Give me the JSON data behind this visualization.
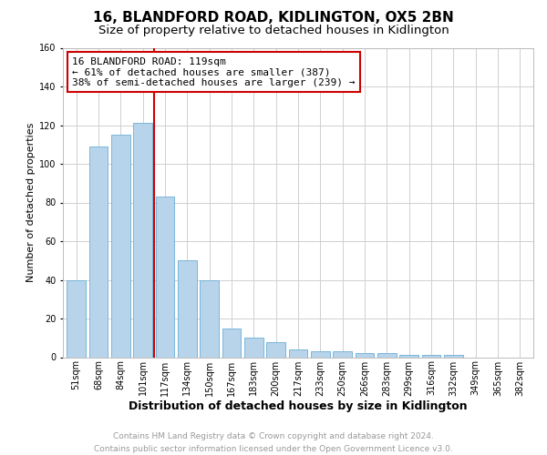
{
  "title": "16, BLANDFORD ROAD, KIDLINGTON, OX5 2BN",
  "subtitle": "Size of property relative to detached houses in Kidlington",
  "xlabel": "Distribution of detached houses by size in Kidlington",
  "ylabel": "Number of detached properties",
  "categories": [
    "51sqm",
    "68sqm",
    "84sqm",
    "101sqm",
    "117sqm",
    "134sqm",
    "150sqm",
    "167sqm",
    "183sqm",
    "200sqm",
    "217sqm",
    "233sqm",
    "250sqm",
    "266sqm",
    "283sqm",
    "299sqm",
    "316sqm",
    "332sqm",
    "349sqm",
    "365sqm",
    "382sqm"
  ],
  "values": [
    40,
    109,
    115,
    121,
    83,
    50,
    40,
    15,
    10,
    8,
    4,
    3,
    3,
    2,
    2,
    1,
    1,
    1,
    0,
    0,
    0
  ],
  "bar_color": "#b8d4ea",
  "bar_edge_color": "#6aaed6",
  "highlight_line_color": "#cc0000",
  "annotation_line1": "16 BLANDFORD ROAD: 119sqm",
  "annotation_line2": "← 61% of detached houses are smaller (387)",
  "annotation_line3": "38% of semi-detached houses are larger (239) →",
  "annotation_box_color": "#ffffff",
  "annotation_box_edge_color": "#cc0000",
  "footer_line1": "Contains HM Land Registry data © Crown copyright and database right 2024.",
  "footer_line2": "Contains public sector information licensed under the Open Government Licence v3.0.",
  "ylim": [
    0,
    160
  ],
  "yticks": [
    0,
    20,
    40,
    60,
    80,
    100,
    120,
    140,
    160
  ],
  "title_fontsize": 11,
  "subtitle_fontsize": 9.5,
  "xlabel_fontsize": 9,
  "ylabel_fontsize": 8,
  "tick_fontsize": 7,
  "annotation_fontsize": 8,
  "footer_fontsize": 6.5,
  "background_color": "#ffffff",
  "grid_color": "#d0d0d0"
}
